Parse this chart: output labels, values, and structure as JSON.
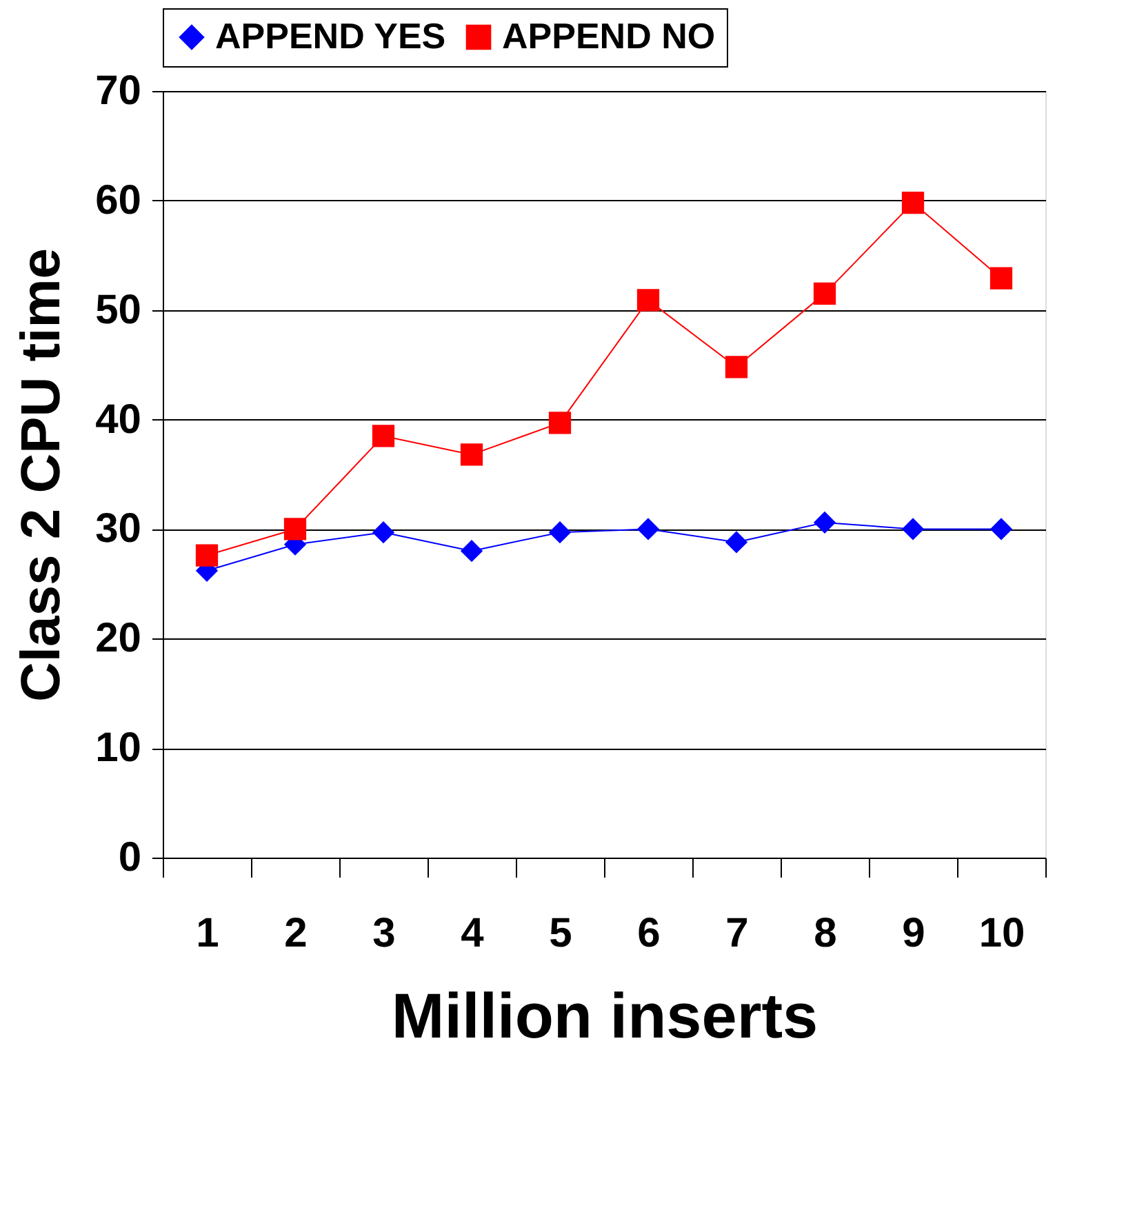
{
  "chart_data": {
    "type": "line",
    "xlabel": "Million inserts",
    "ylabel": "Class 2 CPU time",
    "categories": [
      "1",
      "2",
      "3",
      "4",
      "5",
      "6",
      "7",
      "8",
      "9",
      "10"
    ],
    "series": [
      {
        "name": "APPEND YES",
        "color": "#0000ff",
        "marker": "diamond",
        "values": [
          26.2,
          28.6,
          29.7,
          28.0,
          29.7,
          30.0,
          28.8,
          30.6,
          30.0,
          30.0
        ]
      },
      {
        "name": "APPEND NO",
        "color": "#ff0000",
        "marker": "square",
        "values": [
          27.6,
          30.0,
          38.5,
          36.8,
          39.7,
          50.9,
          44.8,
          51.5,
          59.8,
          52.9
        ]
      }
    ],
    "ylim": [
      0,
      70
    ],
    "yticks": [
      0,
      10,
      20,
      30,
      40,
      50,
      60,
      70
    ],
    "grid": "y",
    "legend": "top",
    "line_style": "solid"
  }
}
